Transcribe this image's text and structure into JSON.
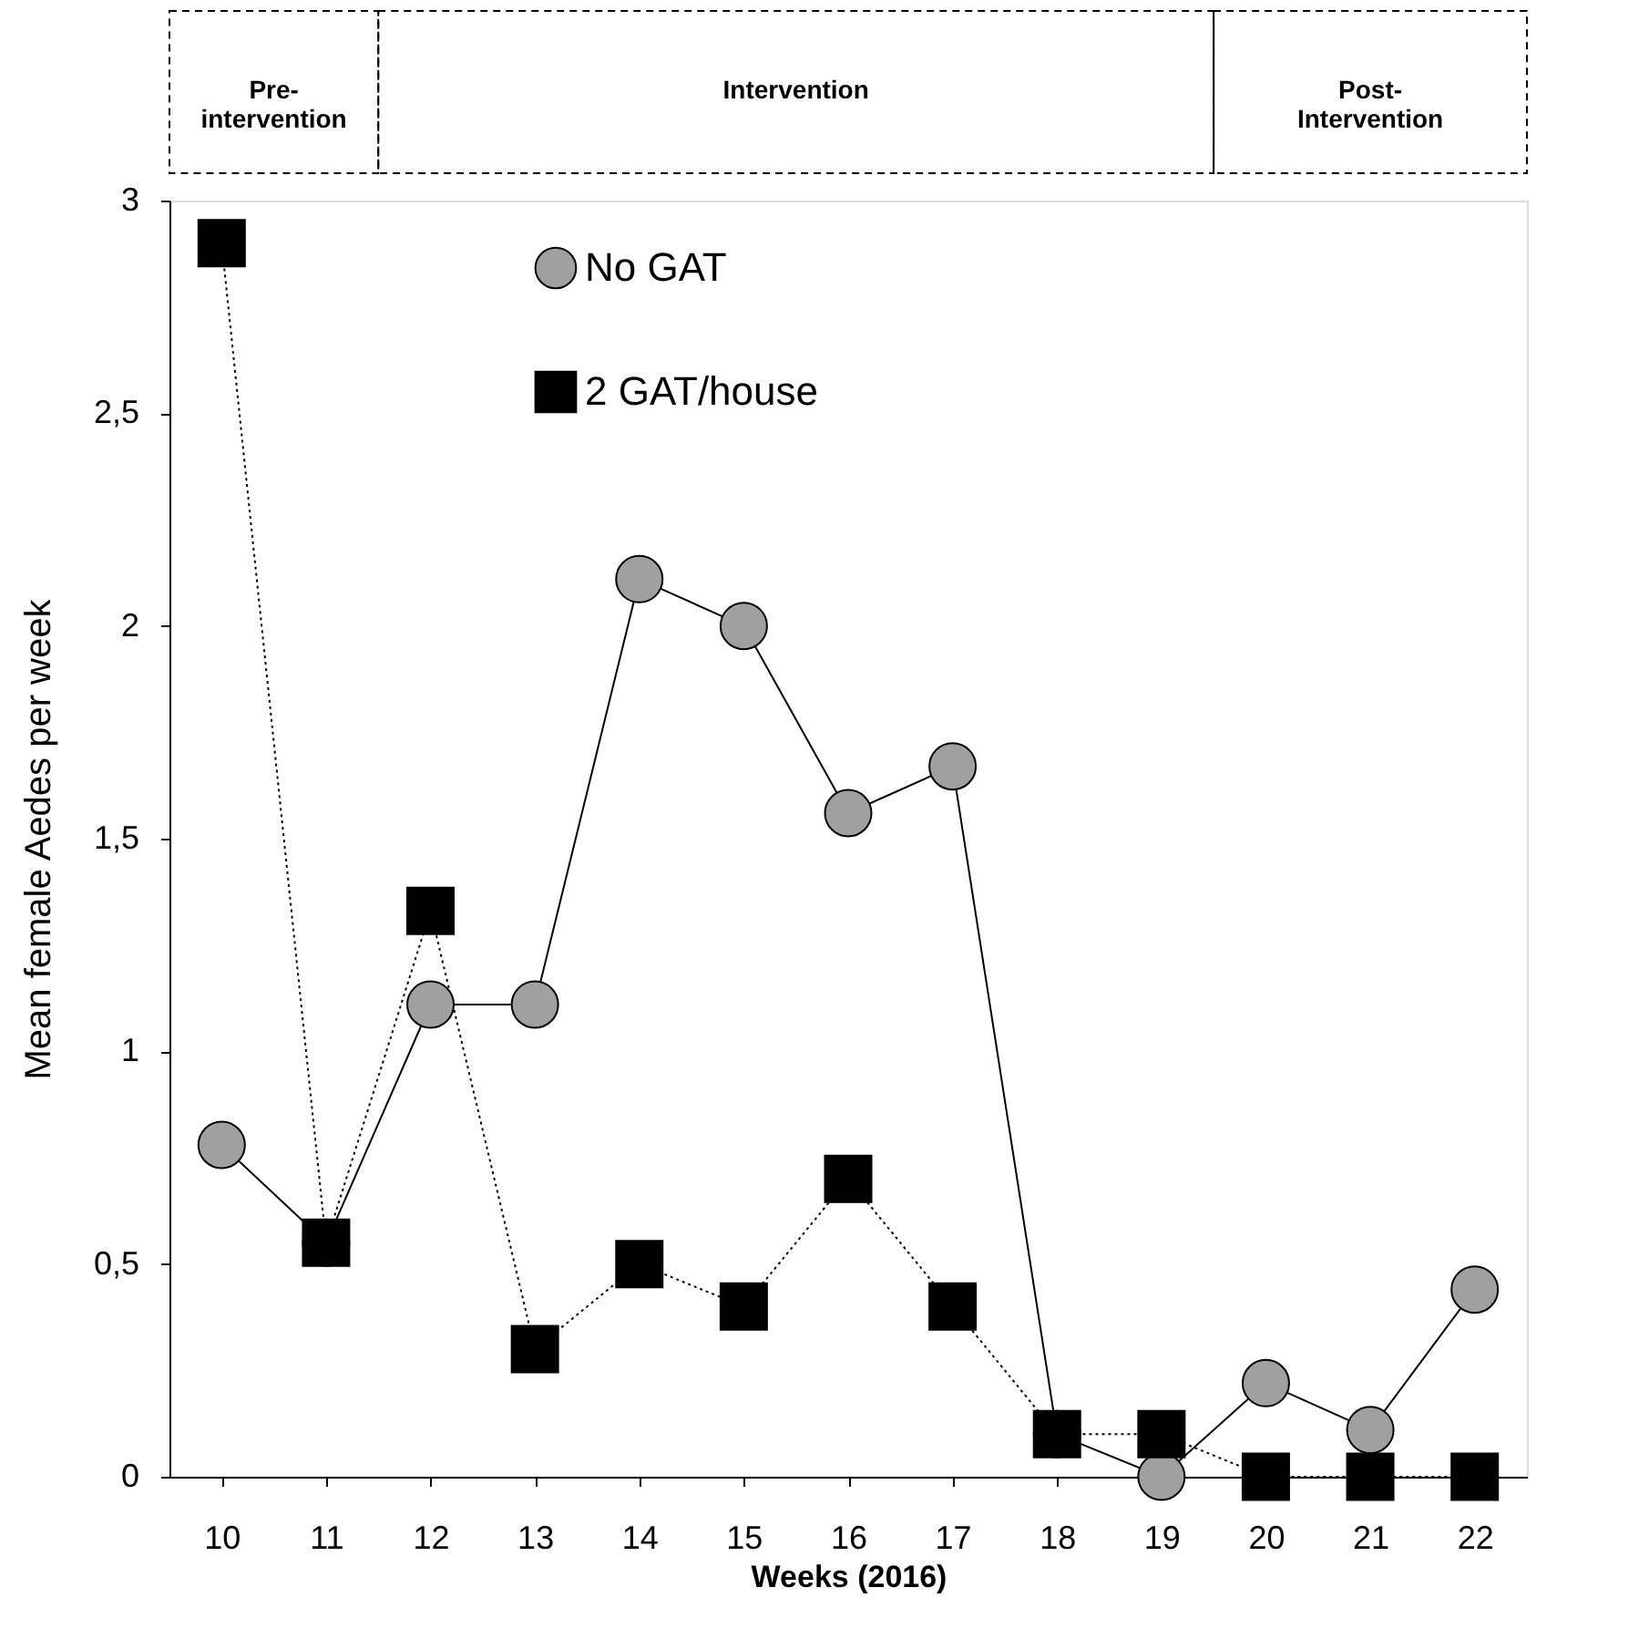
{
  "chart_data": {
    "type": "line",
    "xlabel": "Weeks (2016)",
    "ylabel": "Mean female Aedes per week",
    "categories": [
      "10",
      "11",
      "12",
      "13",
      "14",
      "15",
      "16",
      "17",
      "18",
      "19",
      "20",
      "21",
      "22"
    ],
    "series": [
      {
        "name": "No GAT",
        "color": "#a0a0a0",
        "marker": "circle",
        "line_style": "solid",
        "values": [
          0.78,
          0.55,
          1.11,
          1.11,
          2.11,
          2.0,
          1.56,
          1.67,
          0.1,
          0.0,
          0.22,
          0.11,
          0.44
        ]
      },
      {
        "name": "2 GAT/house",
        "color": "#000000",
        "marker": "square",
        "line_style": "dotted",
        "values": [
          2.9,
          0.55,
          1.33,
          0.3,
          0.5,
          0.4,
          0.7,
          0.4,
          0.1,
          0.1,
          0.0,
          0.0,
          0.0
        ]
      }
    ],
    "ylim": [
      0,
      3
    ],
    "yticks": [
      0,
      {
        "value": 0.5,
        "label": "0,5"
      },
      1,
      {
        "value": 1.5,
        "label": "1,5"
      },
      2,
      {
        "value": 2.5,
        "label": "2,5"
      },
      3
    ],
    "annotations": [
      "Pre-\nintervention",
      "Intervention",
      "Post-\nIntervention"
    ],
    "grid": false,
    "legend": "top"
  }
}
